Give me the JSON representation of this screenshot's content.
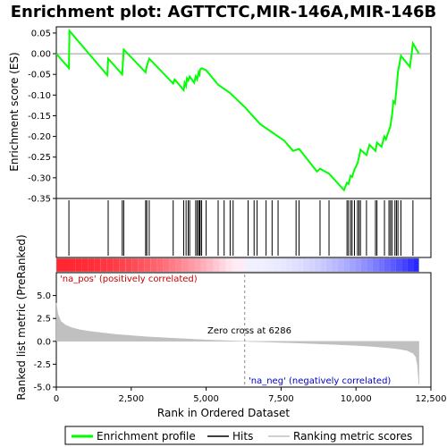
{
  "chart_data": {
    "type": "line",
    "title": "Enrichment plot: AGTTCTC,MIR-146A,MIR-146B",
    "top_panel": {
      "ylabel": "Enrichment score (ES)",
      "ylim": [
        -0.35,
        0.065
      ],
      "yticks": [
        0.05,
        0.0,
        -0.05,
        -0.1,
        -0.15,
        -0.2,
        -0.25,
        -0.3,
        -0.35
      ],
      "ytick_labels": [
        "0.05",
        "0.00",
        "-0.05",
        "-0.10",
        "-0.15",
        "-0.20",
        "-0.25",
        "-0.30",
        "-0.35"
      ],
      "series": [
        {
          "name": "Enrichment profile",
          "color": "#00ff00",
          "x": [
            0,
            420,
            440,
            1700,
            1730,
            2200,
            2250,
            2980,
            3020,
            3100,
            3900,
            3950,
            4250,
            4280,
            4330,
            4360,
            4400,
            4450,
            4600,
            4650,
            4700,
            4750,
            4780,
            4800,
            4850,
            5000,
            5400,
            5800,
            6300,
            6800,
            7200,
            7600,
            7900,
            8100,
            8700,
            8800,
            9100,
            9600,
            9700,
            9750,
            9820,
            9870,
            9950,
            10050,
            10100,
            10150,
            10350,
            10450,
            10650,
            10700,
            10850,
            10950,
            11000,
            11100,
            11150,
            11200,
            11250,
            11300,
            11350,
            11400,
            11500,
            11800,
            11900,
            12100
          ],
          "y": [
            0.0,
            -0.035,
            0.055,
            -0.052,
            -0.012,
            -0.05,
            0.01,
            -0.045,
            -0.03,
            -0.012,
            -0.072,
            -0.062,
            -0.088,
            -0.07,
            -0.078,
            -0.06,
            -0.065,
            -0.055,
            -0.07,
            -0.055,
            -0.062,
            -0.045,
            -0.05,
            -0.038,
            -0.035,
            -0.04,
            -0.075,
            -0.095,
            -0.13,
            -0.17,
            -0.19,
            -0.21,
            -0.235,
            -0.23,
            -0.285,
            -0.278,
            -0.29,
            -0.33,
            -0.312,
            -0.315,
            -0.295,
            -0.298,
            -0.28,
            -0.265,
            -0.25,
            -0.232,
            -0.245,
            -0.22,
            -0.235,
            -0.215,
            -0.225,
            -0.2,
            -0.207,
            -0.185,
            -0.175,
            -0.15,
            -0.115,
            -0.12,
            -0.085,
            -0.045,
            -0.005,
            -0.032,
            0.025,
            0.0
          ]
        }
      ]
    },
    "hits": [
      420,
      1730,
      2200,
      2250,
      2980,
      3020,
      3100,
      3900,
      4250,
      4330,
      4400,
      4450,
      4650,
      4700,
      4750,
      4780,
      4800,
      4850,
      5000,
      5400,
      5600,
      5800,
      5900,
      6400,
      6600,
      6700,
      7000,
      7200,
      7400,
      8000,
      8100,
      8800,
      9100,
      9700,
      9750,
      9820,
      9870,
      9950,
      10050,
      10100,
      10150,
      10350,
      10650,
      10700,
      10950,
      11100,
      11150,
      11200,
      11300,
      11350,
      11400,
      11500,
      11900
    ],
    "bottom_panel": {
      "ylabel": "Ranked list metric (PreRanked)",
      "xlabel": "Rank in Ordered Dataset",
      "ylim": [
        -5.0,
        7.5
      ],
      "yticks": [
        5.0,
        2.5,
        0.0,
        -2.5,
        -5.0
      ],
      "ytick_labels": [
        "5.0",
        "2.5",
        "0.0",
        "-2.5",
        "-5.0"
      ],
      "xlim": [
        0,
        12500
      ],
      "xticks": [
        0,
        2500,
        5000,
        7500,
        10000,
        12500
      ],
      "xtick_labels": [
        "0",
        "2,500",
        "5,000",
        "7,500",
        "10,000",
        "12,500"
      ],
      "metric_curve": {
        "x": [
          0,
          50,
          150,
          300,
          500,
          800,
          1200,
          2000,
          3000,
          4000,
          5000,
          6000,
          6286,
          7000,
          8000,
          9000,
          10000,
          10500,
          11000,
          11400,
          11700,
          11900,
          12000,
          12050,
          12100
        ],
        "y": [
          4.2,
          3.0,
          2.2,
          1.8,
          1.5,
          1.25,
          1.05,
          0.75,
          0.5,
          0.32,
          0.16,
          0.03,
          0.0,
          -0.07,
          -0.18,
          -0.3,
          -0.45,
          -0.55,
          -0.68,
          -0.82,
          -1.0,
          -1.3,
          -1.7,
          -2.6,
          -4.7
        ]
      },
      "zero_cross_label": "Zero cross at 6286",
      "zero_cross": 6286,
      "pos_label": "'na_pos' (positively correlated)",
      "neg_label": "'na_neg' (negatively correlated)"
    },
    "legend": [
      {
        "label": "Enrichment profile",
        "color": "#00ff00"
      },
      {
        "label": "Hits",
        "color": "#000000"
      },
      {
        "label": "Ranking metric scores",
        "color": "#c0c0c0"
      }
    ]
  }
}
